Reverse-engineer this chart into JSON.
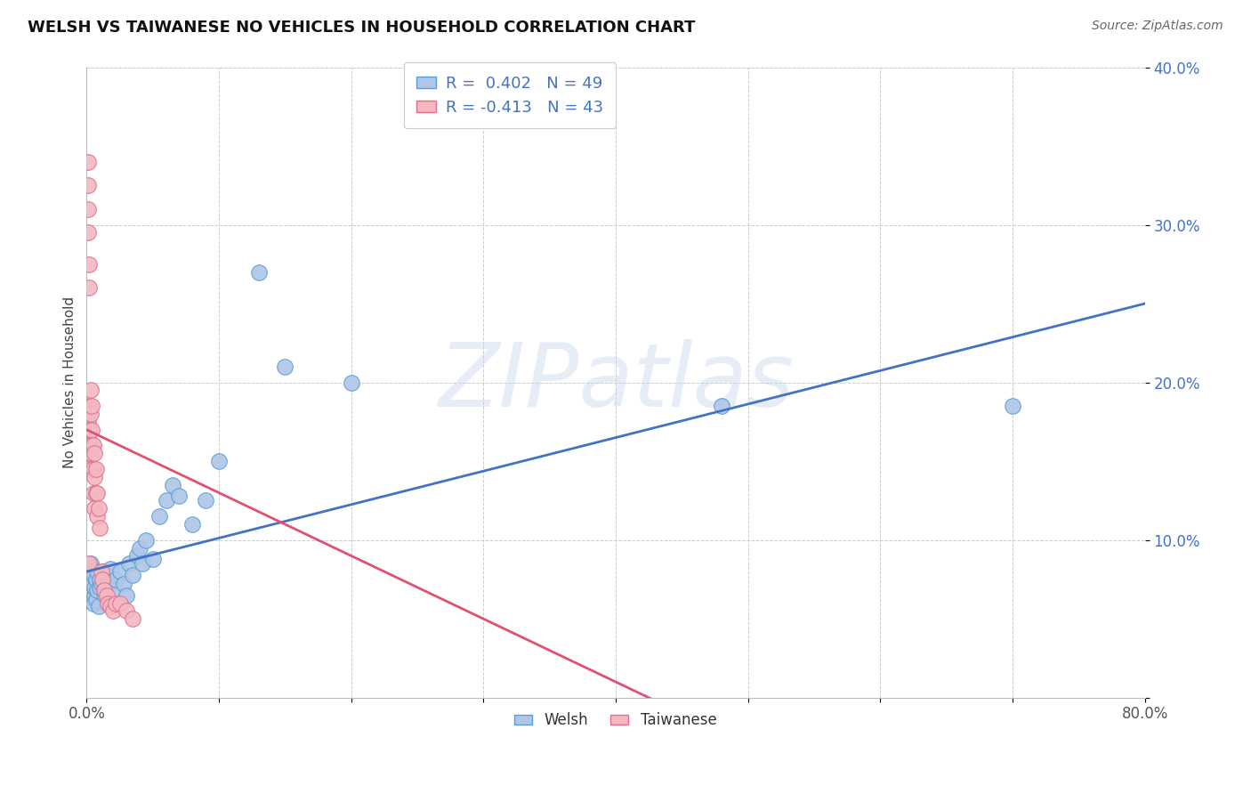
{
  "title": "WELSH VS TAIWANESE NO VEHICLES IN HOUSEHOLD CORRELATION CHART",
  "source": "Source: ZipAtlas.com",
  "ylabel": "No Vehicles in Household",
  "xlim": [
    0,
    0.8
  ],
  "ylim": [
    0,
    0.4
  ],
  "welsh_color": "#aec6e8",
  "taiwanese_color": "#f4b8c1",
  "welsh_edge_color": "#5a9fd4",
  "taiwanese_edge_color": "#e07090",
  "line_color_welsh": "#4472c4",
  "line_color_taiwanese": "#e05070",
  "welsh_R": 0.402,
  "welsh_N": 49,
  "taiwanese_R": -0.413,
  "taiwanese_N": 43,
  "welsh_x": [
    0.001,
    0.002,
    0.002,
    0.003,
    0.003,
    0.004,
    0.004,
    0.005,
    0.005,
    0.006,
    0.006,
    0.007,
    0.007,
    0.008,
    0.008,
    0.009,
    0.01,
    0.01,
    0.011,
    0.012,
    0.013,
    0.014,
    0.015,
    0.016,
    0.018,
    0.02,
    0.022,
    0.025,
    0.028,
    0.03,
    0.032,
    0.035,
    0.038,
    0.04,
    0.042,
    0.045,
    0.05,
    0.055,
    0.06,
    0.065,
    0.07,
    0.08,
    0.09,
    0.1,
    0.13,
    0.15,
    0.2,
    0.48,
    0.7
  ],
  "welsh_y": [
    0.075,
    0.07,
    0.08,
    0.065,
    0.085,
    0.068,
    0.072,
    0.06,
    0.078,
    0.065,
    0.07,
    0.075,
    0.062,
    0.068,
    0.08,
    0.058,
    0.07,
    0.075,
    0.072,
    0.08,
    0.068,
    0.065,
    0.078,
    0.072,
    0.082,
    0.068,
    0.075,
    0.08,
    0.072,
    0.065,
    0.085,
    0.078,
    0.09,
    0.095,
    0.085,
    0.1,
    0.088,
    0.115,
    0.125,
    0.135,
    0.128,
    0.11,
    0.125,
    0.15,
    0.27,
    0.21,
    0.2,
    0.185,
    0.185
  ],
  "taiwanese_x": [
    0.001,
    0.001,
    0.001,
    0.001,
    0.001,
    0.001,
    0.001,
    0.002,
    0.002,
    0.002,
    0.002,
    0.002,
    0.002,
    0.003,
    0.003,
    0.003,
    0.003,
    0.004,
    0.004,
    0.004,
    0.005,
    0.005,
    0.005,
    0.006,
    0.006,
    0.006,
    0.007,
    0.007,
    0.008,
    0.008,
    0.009,
    0.01,
    0.011,
    0.012,
    0.013,
    0.015,
    0.016,
    0.018,
    0.02,
    0.022,
    0.025,
    0.03,
    0.035
  ],
  "taiwanese_y": [
    0.34,
    0.325,
    0.31,
    0.295,
    0.175,
    0.165,
    0.155,
    0.275,
    0.26,
    0.185,
    0.17,
    0.16,
    0.085,
    0.195,
    0.18,
    0.155,
    0.145,
    0.185,
    0.17,
    0.16,
    0.16,
    0.145,
    0.13,
    0.155,
    0.14,
    0.12,
    0.145,
    0.13,
    0.13,
    0.115,
    0.12,
    0.108,
    0.08,
    0.075,
    0.068,
    0.065,
    0.06,
    0.058,
    0.055,
    0.06,
    0.06,
    0.055,
    0.05
  ],
  "background_color": "#ffffff",
  "grid_color": "#cccccc",
  "watermark": "ZIPatlas",
  "legend_labels": [
    "Welsh",
    "Taiwanese"
  ],
  "figsize": [
    14.06,
    8.92
  ],
  "dpi": 100
}
